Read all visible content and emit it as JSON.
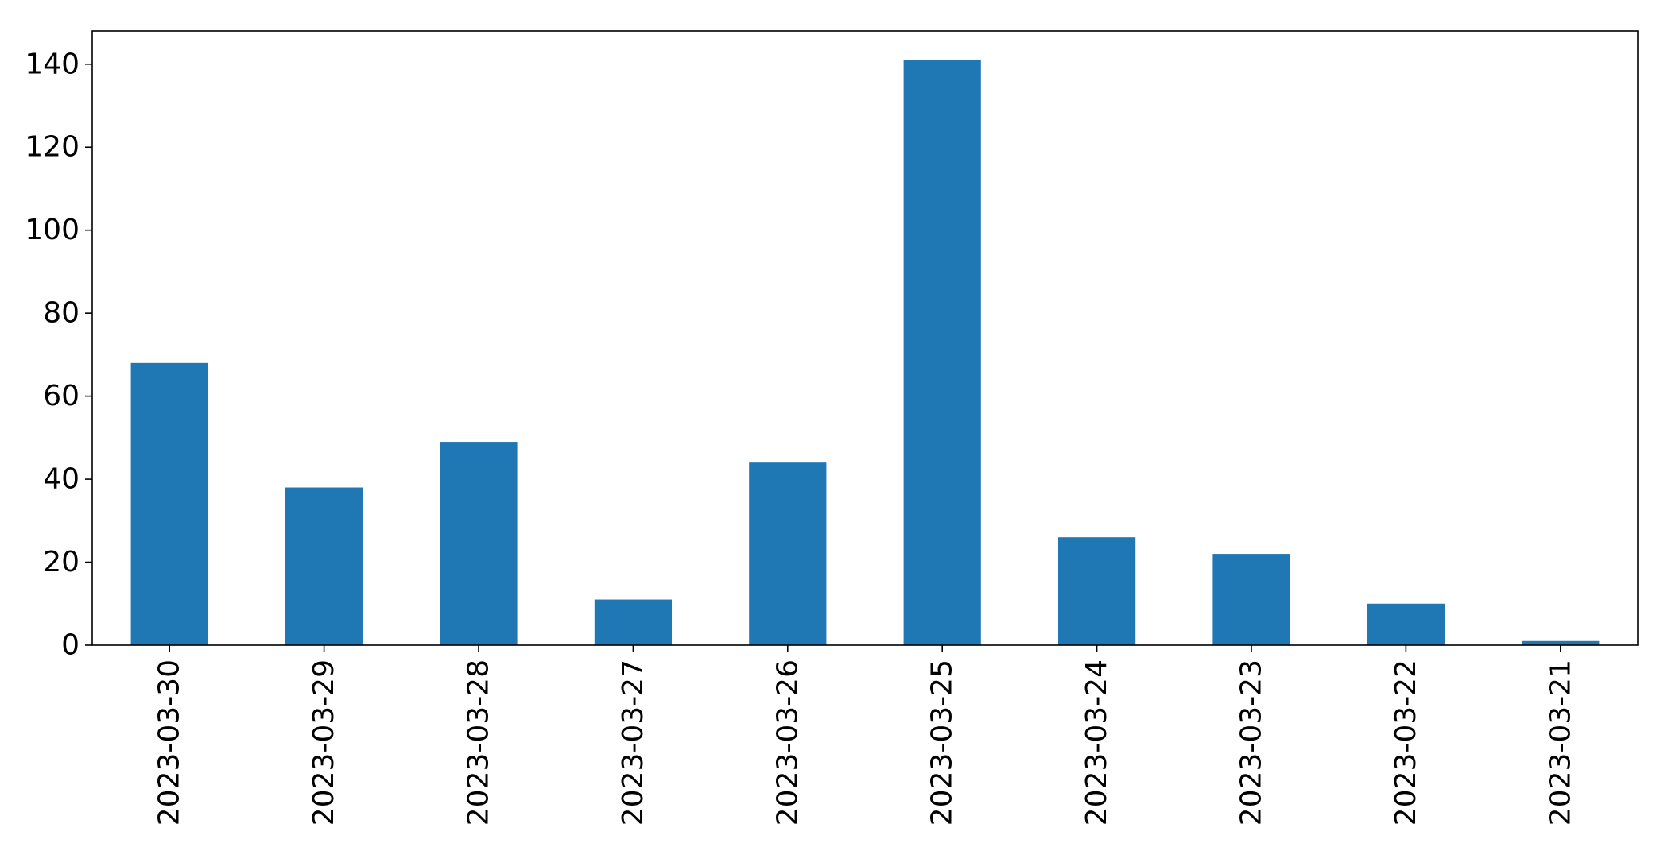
{
  "chart_data": {
    "type": "bar",
    "title": "",
    "xlabel": "",
    "ylabel": "",
    "categories": [
      "2023-03-30",
      "2023-03-29",
      "2023-03-28",
      "2023-03-27",
      "2023-03-26",
      "2023-03-25",
      "2023-03-24",
      "2023-03-23",
      "2023-03-22",
      "2023-03-21"
    ],
    "values": [
      68,
      38,
      49,
      11,
      44,
      141,
      26,
      22,
      10,
      1
    ],
    "ylim": [
      0,
      148
    ],
    "yticks": [
      0,
      20,
      40,
      60,
      80,
      100,
      120,
      140
    ],
    "grid": false,
    "legend": "none",
    "bar_color": "#1f77b4",
    "x_tick_rotation": "vertical"
  }
}
